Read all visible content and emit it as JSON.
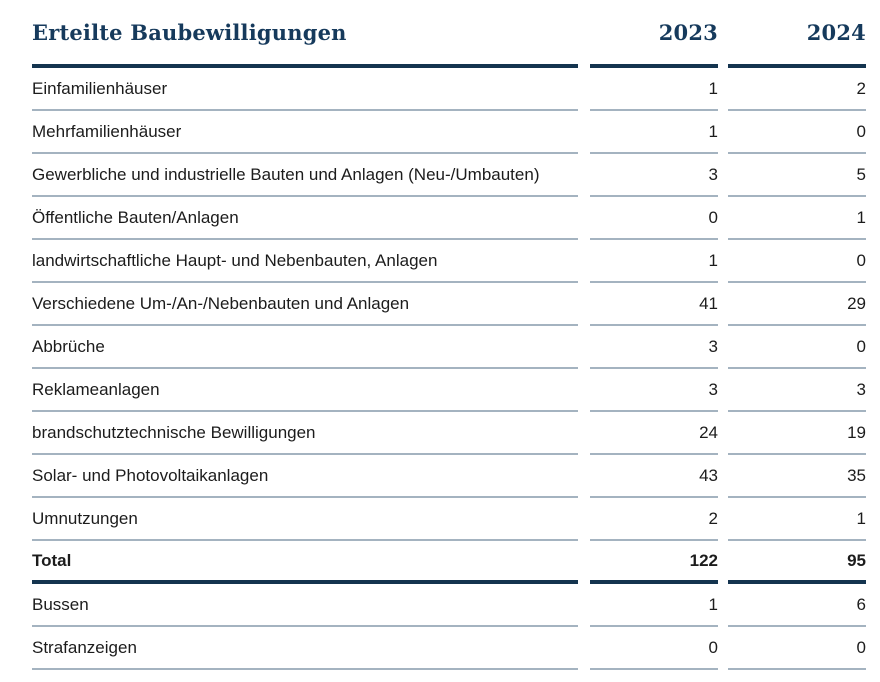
{
  "chart_data": {
    "type": "table",
    "title": "Erteilte Baubewilligungen",
    "columns": [
      "2023",
      "2024"
    ],
    "rows": [
      {
        "label": "Einfamilienhäuser",
        "values": [
          1,
          2
        ],
        "emphasis": false
      },
      {
        "label": "Mehrfamilienhäuser",
        "values": [
          1,
          0
        ],
        "emphasis": false
      },
      {
        "label": "Gewerbliche und industrielle Bauten und Anlagen (Neu-/Umbauten)",
        "values": [
          3,
          5
        ],
        "emphasis": false
      },
      {
        "label": "Öffentliche Bauten/Anlagen",
        "values": [
          0,
          1
        ],
        "emphasis": false
      },
      {
        "label": "landwirtschaftliche Haupt- und Nebenbauten, Anlagen",
        "values": [
          1,
          0
        ],
        "emphasis": false
      },
      {
        "label": "Verschiedene Um-/An-/Nebenbauten und Anlagen",
        "values": [
          41,
          29
        ],
        "emphasis": false
      },
      {
        "label": "Abbrüche",
        "values": [
          3,
          0
        ],
        "emphasis": false
      },
      {
        "label": "Reklameanlagen",
        "values": [
          3,
          3
        ],
        "emphasis": false
      },
      {
        "label": "brandschutztechnische Bewilligungen",
        "values": [
          24,
          19
        ],
        "emphasis": false
      },
      {
        "label": "Solar- und Photovoltaikanlagen",
        "values": [
          43,
          35
        ],
        "emphasis": false
      },
      {
        "label": "Umnutzungen",
        "values": [
          2,
          1
        ],
        "emphasis": false
      },
      {
        "label": "Total",
        "values": [
          122,
          95
        ],
        "emphasis": true
      },
      {
        "label": "Bussen",
        "values": [
          1,
          6
        ],
        "emphasis": false
      },
      {
        "label": "Strafanzeigen",
        "values": [
          0,
          0
        ],
        "emphasis": false
      }
    ],
    "totals": {
      "label": "Total",
      "values": [
        122,
        95
      ]
    },
    "layout": "two numeric year columns, right-aligned; thick navy rules under header and Total row; thin blue-grey separators between rows; legend none; grid off"
  },
  "colors": {
    "navy_heading": "#163a5c",
    "navy_rule": "#14344f",
    "row_separator": "#a4b3c0",
    "body_text": "#1c1c1c",
    "background": "#ffffff"
  }
}
